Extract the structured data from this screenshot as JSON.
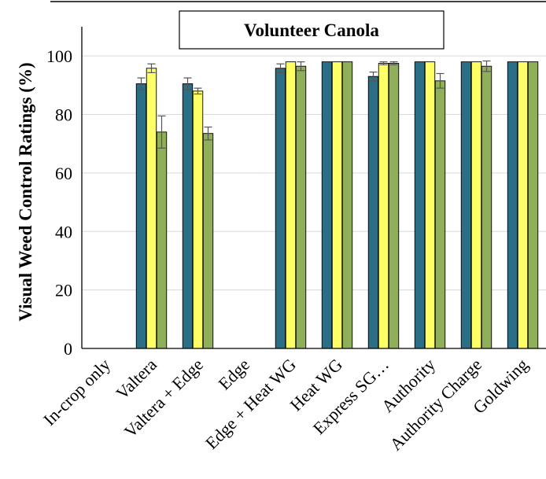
{
  "chart_data": {
    "type": "bar",
    "title": "Volunteer Canola",
    "xlabel": "",
    "ylabel": "Visual Weed Control Ratings (%)",
    "ylim": [
      0,
      110
    ],
    "yticks": [
      0,
      20,
      40,
      60,
      80,
      100
    ],
    "grid": true,
    "categories": [
      "In-crop only",
      "Valtera",
      "Valtera + Edge",
      "Edge",
      "Edge + Heat WG",
      "Heat WG",
      "Express SG…",
      "Authority",
      "Authority Charge",
      "Goldwing"
    ],
    "series": [
      {
        "color": "#2a6f86",
        "values": [
          0,
          90.5,
          90.5,
          0,
          95.8,
          98,
          93,
          98,
          98,
          98
        ],
        "errors": [
          0,
          2,
          2,
          0,
          1.5,
          0,
          1.5,
          0,
          0,
          0
        ]
      },
      {
        "color": "#ffff66",
        "values": [
          0,
          95.8,
          88,
          0,
          98,
          98,
          97.5,
          98,
          98,
          98
        ],
        "errors": [
          0,
          1.5,
          1,
          0,
          0,
          0,
          0.5,
          0,
          0,
          0
        ]
      },
      {
        "color": "#8faf5a",
        "values": [
          0,
          74,
          73.5,
          0,
          96.5,
          98,
          97.5,
          91.5,
          96.5,
          98
        ],
        "errors": [
          0,
          5.5,
          2.2,
          0,
          1.5,
          0,
          0.5,
          2.5,
          1.8,
          0
        ]
      }
    ]
  }
}
